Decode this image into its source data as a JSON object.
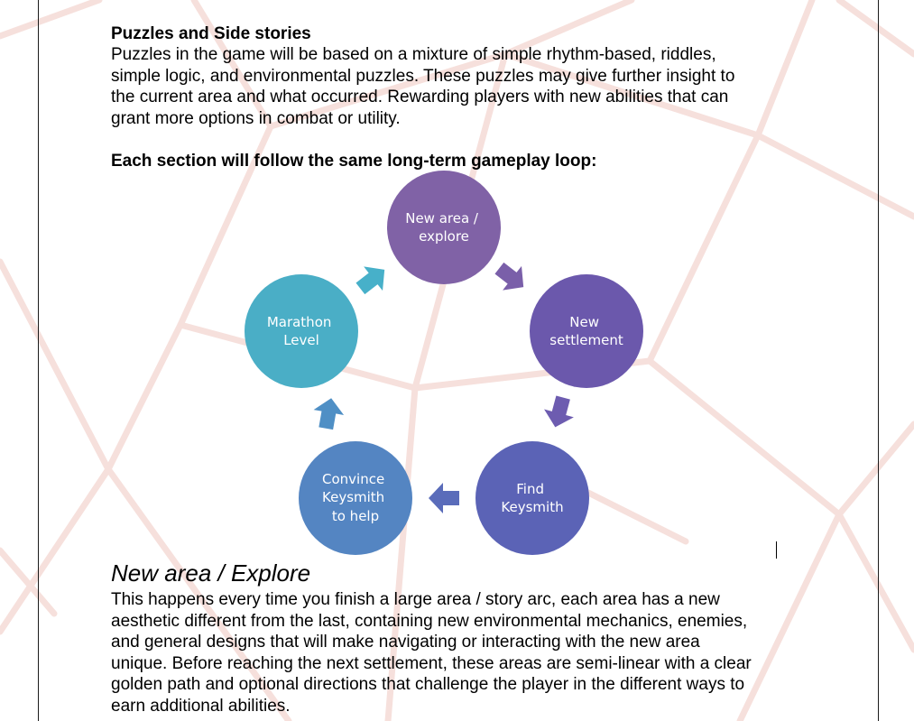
{
  "document": {
    "puzzles_heading": "Puzzles and Side stories",
    "puzzles_lines": [
      "Puzzles in the game will be based on a mixture of simple rhythm-based, riddles,",
      "simple logic, and environmental puzzles. These puzzles may give further insight to",
      "the current area and what occurred. Rewarding players with new abilities that can",
      "grant more options in combat or utility."
    ],
    "loop_heading": "Each section will follow the same long-term gameplay loop:",
    "section_heading": "New area / Explore",
    "section_lines": [
      "This happens every time you finish a large area / story arc, each area has a new",
      "aesthetic different from the last, containing new environmental mechanics, enemies,",
      "and general designs that will make navigating or interacting with the new area",
      "unique. Before reaching the next settlement, these areas are semi-linear with a clear",
      "golden path and optional directions that challenge the player in the different ways to",
      "earn additional abilities."
    ]
  },
  "diagram": {
    "nodes": [
      {
        "lines": [
          "New area /",
          "explore"
        ],
        "color": "#8062a6"
      },
      {
        "lines": [
          "New",
          "settlement"
        ],
        "color": "#6b58ac"
      },
      {
        "lines": [
          "Find",
          "Keysmith"
        ],
        "color": "#5b63b6"
      },
      {
        "lines": [
          "Convince",
          "Keysmith",
          "to help"
        ],
        "color": "#5485c2"
      },
      {
        "lines": [
          "Marathon",
          "Level"
        ],
        "color": "#4aaec6"
      }
    ],
    "arrow_colors": [
      "#7a5fa9",
      "#6d5cb0",
      "#5a6cba",
      "#4f8fc5",
      "#47b0c9"
    ]
  },
  "theme": {
    "background_line_color": "#f6e0dc"
  }
}
